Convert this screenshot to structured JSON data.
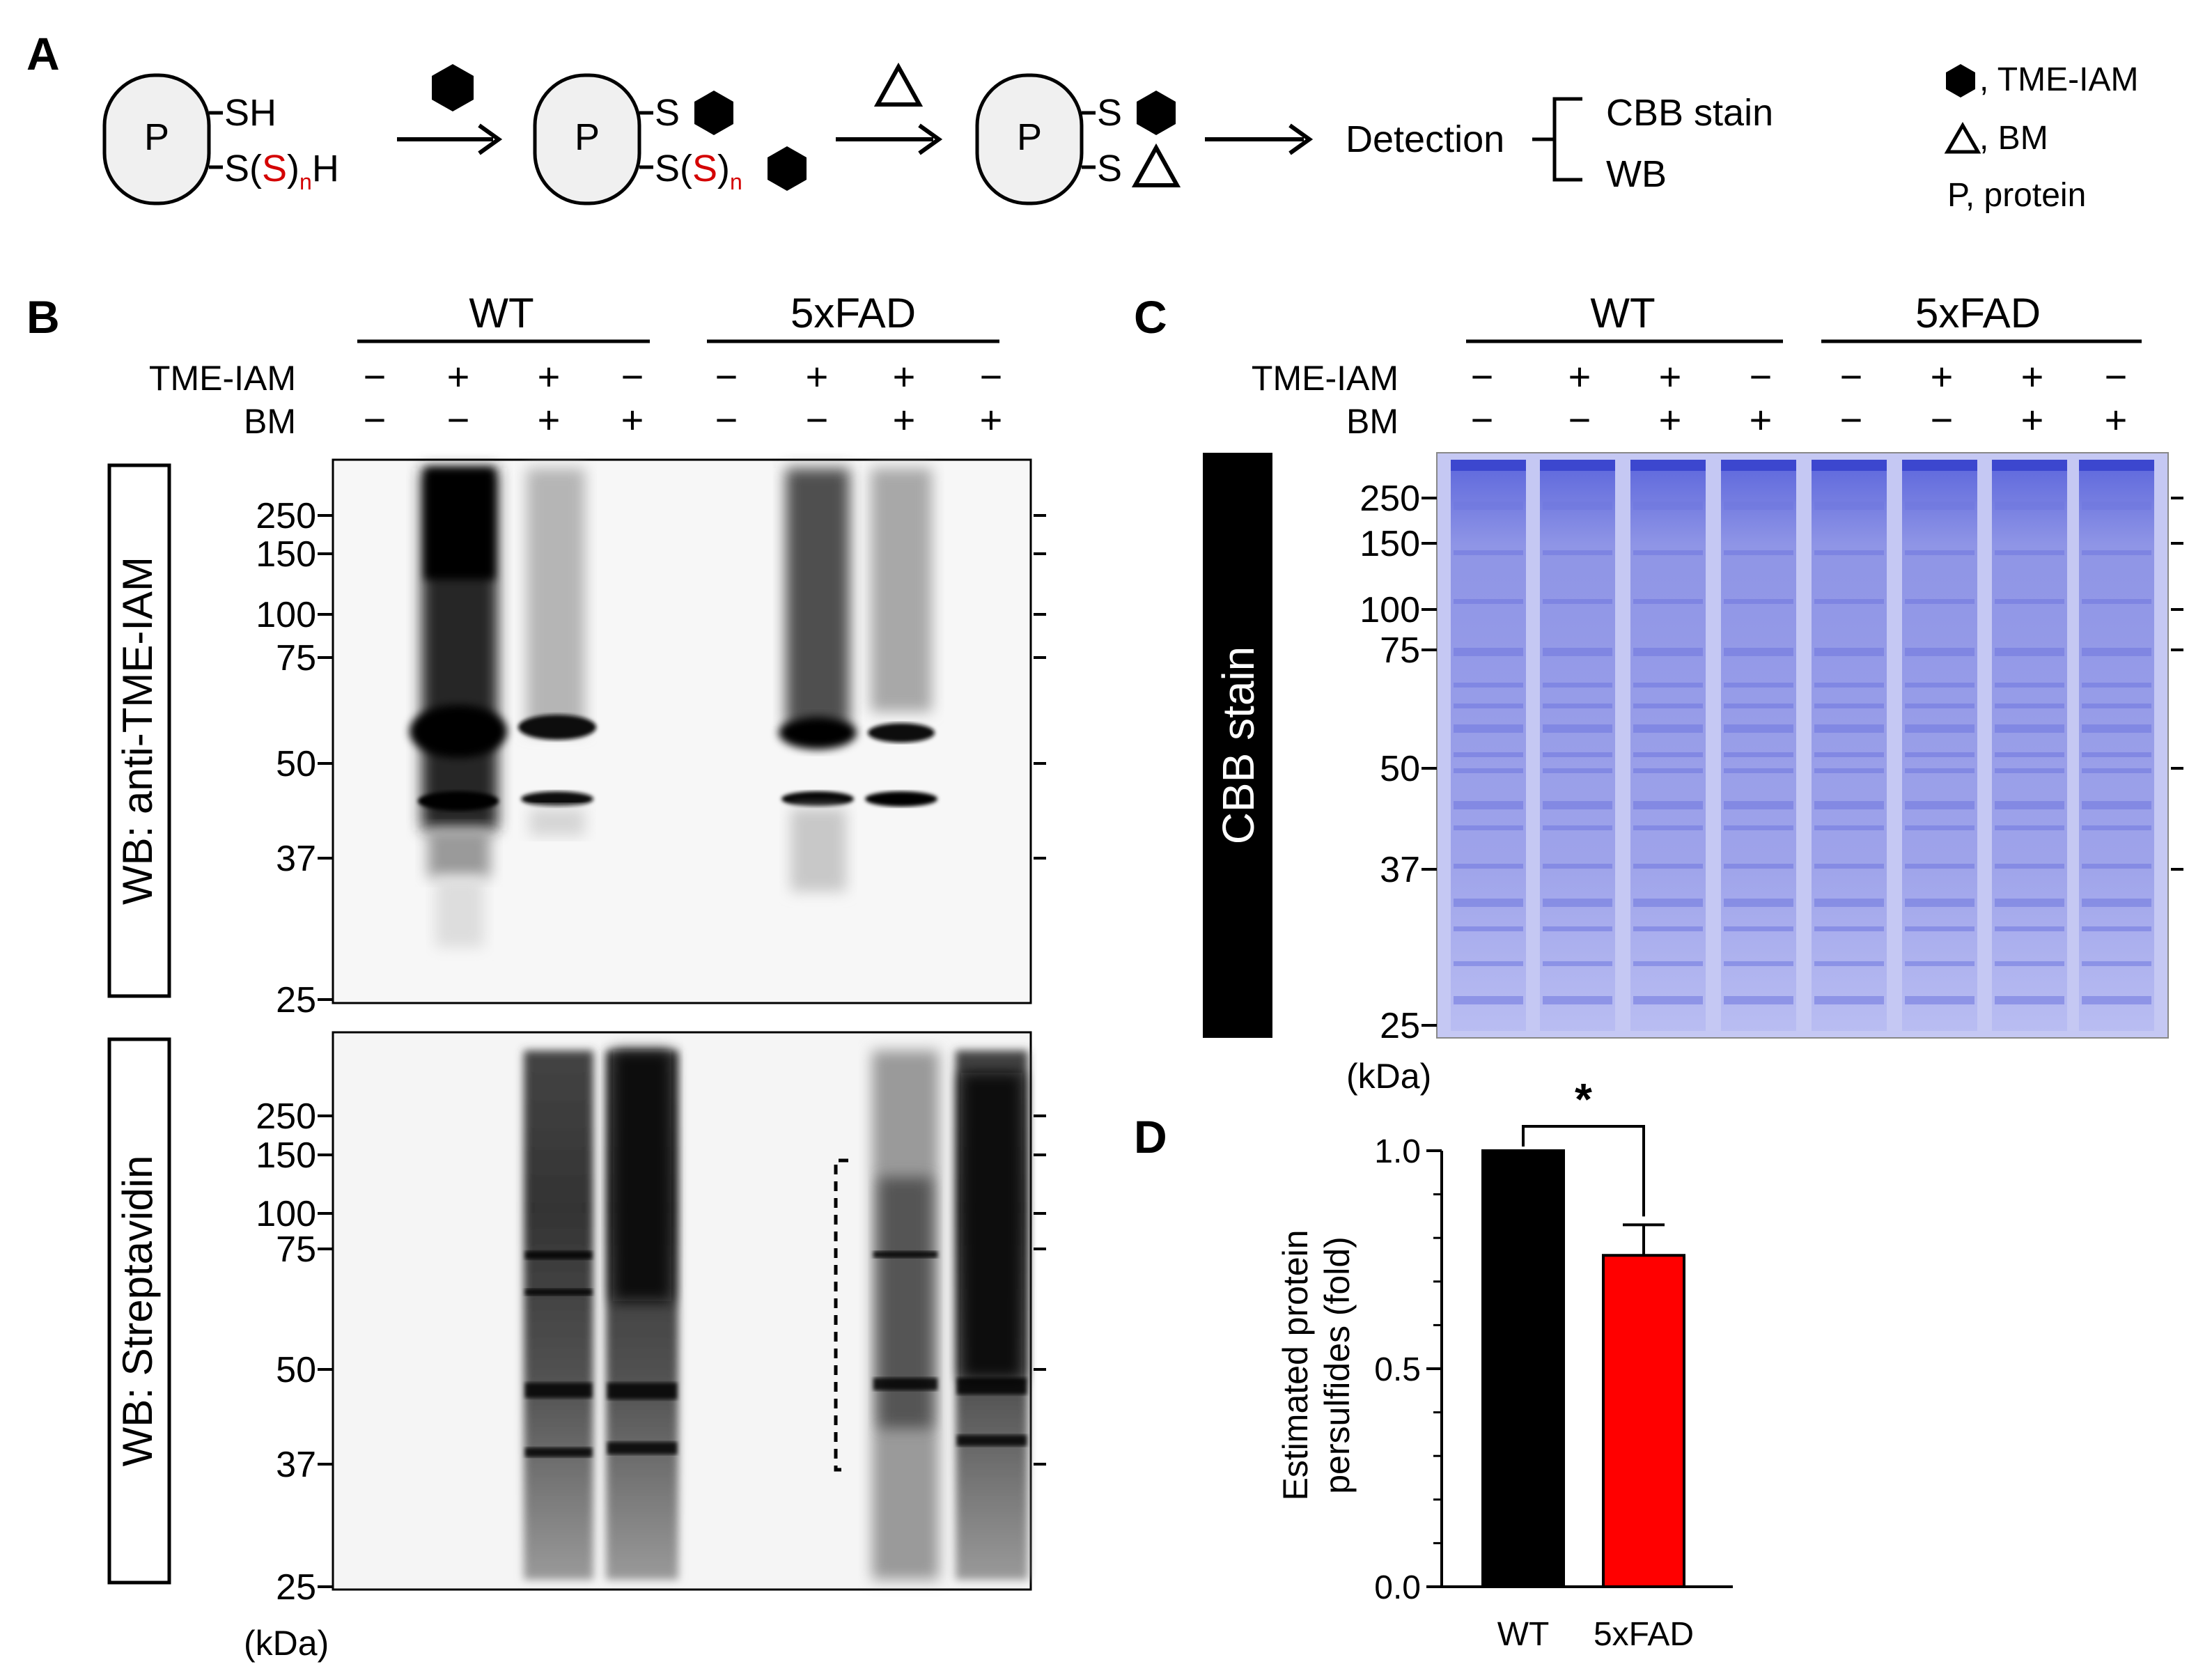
{
  "panels": {
    "a": "A",
    "b": "B",
    "c": "C",
    "d": "D"
  },
  "scheme": {
    "protein_label": "P",
    "sh": "SH",
    "s_prefix": "S(",
    "s_red": "S",
    "s_close": ")",
    "sub_n": "n",
    "h": "H",
    "s": "S",
    "detection": "Detection",
    "cbb_stain": "CBB stain",
    "wb": "WB",
    "legend_tme": ", TME-IAM",
    "legend_bm": ", BM",
    "legend_p": "P, protein"
  },
  "lanes": {
    "wt": "WT",
    "fad": "5xFAD",
    "tme_label": "TME-IAM",
    "bm_label": "BM",
    "tme": [
      "−",
      "+",
      "+",
      "−",
      "−",
      "+",
      "+",
      "−"
    ],
    "bm": [
      "−",
      "−",
      "+",
      "+",
      "−",
      "−",
      "+",
      "+"
    ]
  },
  "blot_top_label": "WB: anti-TME-IAM",
  "blot_bottom_label": "WB: Streptavidin",
  "cbb_label": "CBB stain",
  "markers": [
    "250",
    "150",
    "100",
    "75",
    "50",
    "37",
    "25"
  ],
  "kda": "(kDa)",
  "colors": {
    "wt_bar": "#000000",
    "fad_bar": "#ff0000",
    "cbb": "#8f95e6",
    "sulfur_red": "#d40000"
  },
  "chart_data": {
    "type": "bar",
    "categories": [
      "WT",
      "5xFAD"
    ],
    "values": [
      1.0,
      0.76
    ],
    "error": [
      0,
      0.07
    ],
    "ylabel": "Estimated protein persulfides (fold)",
    "ylim": [
      0,
      1.0
    ],
    "yticks": [
      "0.0",
      "0.5",
      "1.0"
    ],
    "significance": "*"
  }
}
